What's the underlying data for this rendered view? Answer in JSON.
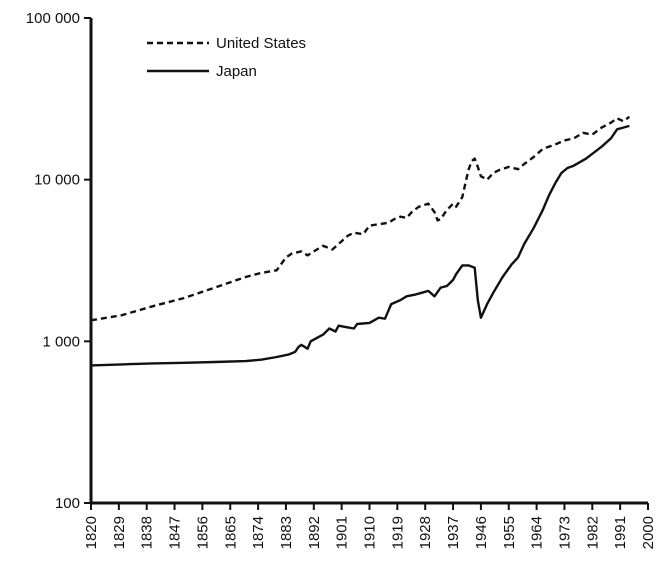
{
  "chart_data": {
    "type": "line",
    "title": "",
    "xlabel": "",
    "ylabel": "",
    "y_scale": "log",
    "ylim": [
      100,
      100000
    ],
    "xlim": [
      1820,
      2000
    ],
    "y_ticks": [
      {
        "value": 100,
        "label": "100"
      },
      {
        "value": 1000,
        "label": "1 000"
      },
      {
        "value": 10000,
        "label": "10 000"
      },
      {
        "value": 100000,
        "label": "100 000"
      }
    ],
    "x_ticks": [
      "1820",
      "1829",
      "1838",
      "1847",
      "1856",
      "1865",
      "1874",
      "1883",
      "1892",
      "1901",
      "1910",
      "1919",
      "1928",
      "1937",
      "1946",
      "1955",
      "1964",
      "1973",
      "1982",
      "1991",
      "2000"
    ],
    "legend_position": "top-left",
    "grid": false,
    "series": [
      {
        "name": "United States",
        "style": "dashed",
        "color": "#111111",
        "points": [
          [
            1820,
            1350
          ],
          [
            1830,
            1450
          ],
          [
            1840,
            1650
          ],
          [
            1850,
            1850
          ],
          [
            1860,
            2150
          ],
          [
            1870,
            2500
          ],
          [
            1875,
            2650
          ],
          [
            1880,
            2750
          ],
          [
            1883,
            3300
          ],
          [
            1885,
            3500
          ],
          [
            1888,
            3600
          ],
          [
            1890,
            3400
          ],
          [
            1893,
            3700
          ],
          [
            1895,
            3900
          ],
          [
            1898,
            3700
          ],
          [
            1900,
            4000
          ],
          [
            1903,
            4500
          ],
          [
            1905,
            4700
          ],
          [
            1908,
            4600
          ],
          [
            1910,
            5200
          ],
          [
            1913,
            5300
          ],
          [
            1916,
            5400
          ],
          [
            1918,
            5700
          ],
          [
            1920,
            5900
          ],
          [
            1922,
            5800
          ],
          [
            1924,
            6400
          ],
          [
            1926,
            6800
          ],
          [
            1929,
            7100
          ],
          [
            1931,
            6300
          ],
          [
            1932,
            5600
          ],
          [
            1933,
            5700
          ],
          [
            1935,
            6500
          ],
          [
            1937,
            7100
          ],
          [
            1938,
            6800
          ],
          [
            1940,
            7800
          ],
          [
            1941,
            9500
          ],
          [
            1942,
            11500
          ],
          [
            1943,
            13000
          ],
          [
            1944,
            13500
          ],
          [
            1945,
            12000
          ],
          [
            1946,
            10500
          ],
          [
            1948,
            10000
          ],
          [
            1950,
            11000
          ],
          [
            1952,
            11500
          ],
          [
            1955,
            12000
          ],
          [
            1958,
            11600
          ],
          [
            1960,
            12500
          ],
          [
            1963,
            13800
          ],
          [
            1966,
            15500
          ],
          [
            1970,
            16500
          ],
          [
            1973,
            17500
          ],
          [
            1976,
            18000
          ],
          [
            1979,
            19500
          ],
          [
            1982,
            19000
          ],
          [
            1985,
            21000
          ],
          [
            1988,
            22500
          ],
          [
            1990,
            24000
          ],
          [
            1992,
            23000
          ],
          [
            1994,
            24500
          ]
        ]
      },
      {
        "name": "Japan",
        "style": "solid",
        "color": "#111111",
        "points": [
          [
            1820,
            710
          ],
          [
            1830,
            720
          ],
          [
            1840,
            730
          ],
          [
            1850,
            737
          ],
          [
            1860,
            745
          ],
          [
            1870,
            755
          ],
          [
            1875,
            770
          ],
          [
            1880,
            800
          ],
          [
            1884,
            830
          ],
          [
            1886,
            860
          ],
          [
            1887,
            920
          ],
          [
            1888,
            950
          ],
          [
            1890,
            900
          ],
          [
            1891,
            1000
          ],
          [
            1893,
            1050
          ],
          [
            1895,
            1100
          ],
          [
            1897,
            1200
          ],
          [
            1899,
            1150
          ],
          [
            1900,
            1250
          ],
          [
            1903,
            1220
          ],
          [
            1905,
            1200
          ],
          [
            1906,
            1280
          ],
          [
            1910,
            1300
          ],
          [
            1913,
            1400
          ],
          [
            1915,
            1380
          ],
          [
            1917,
            1700
          ],
          [
            1920,
            1800
          ],
          [
            1922,
            1900
          ],
          [
            1925,
            1950
          ],
          [
            1927,
            2000
          ],
          [
            1929,
            2050
          ],
          [
            1931,
            1900
          ],
          [
            1933,
            2150
          ],
          [
            1935,
            2200
          ],
          [
            1937,
            2400
          ],
          [
            1938,
            2600
          ],
          [
            1940,
            2950
          ],
          [
            1942,
            2950
          ],
          [
            1944,
            2850
          ],
          [
            1945,
            1800
          ],
          [
            1946,
            1400
          ],
          [
            1948,
            1700
          ],
          [
            1950,
            2000
          ],
          [
            1953,
            2500
          ],
          [
            1956,
            3000
          ],
          [
            1958,
            3300
          ],
          [
            1960,
            4000
          ],
          [
            1963,
            5000
          ],
          [
            1966,
            6500
          ],
          [
            1968,
            8000
          ],
          [
            1970,
            9500
          ],
          [
            1972,
            11000
          ],
          [
            1974,
            11800
          ],
          [
            1976,
            12200
          ],
          [
            1980,
            13500
          ],
          [
            1985,
            16000
          ],
          [
            1988,
            18000
          ],
          [
            1990,
            20500
          ],
          [
            1992,
            21000
          ],
          [
            1994,
            21500
          ]
        ]
      }
    ]
  }
}
